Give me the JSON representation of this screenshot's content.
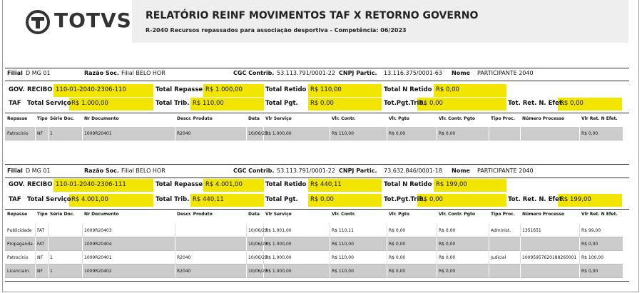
{
  "header": {
    "logo": "TOTVS",
    "title": "RELATÓRIO REINF MOVIMENTOS TAF X RETORNO GOVERNO",
    "subtitle": "R-2040 Recursos repassados para associação desportiva  - Competência: 06/2023"
  },
  "blocks": [
    {
      "info": [
        {
          "label": "Filial",
          "value": "D MG 01"
        },
        {
          "label": "Razão Soc.",
          "value": "Filial BELO HOR"
        },
        {
          "label": "CGC Contrib.",
          "value": "53.113.791/0001-22"
        },
        {
          "label": "CNPJ Partic.",
          "value": "13.116.375/0001-63"
        },
        {
          "label": "Nome",
          "value": "PARTICIPANTE 2040"
        }
      ],
      "gov": {
        "prefix": "GOV.",
        "fields": [
          {
            "label": "RECIBO",
            "value": "110-01-2040-2306-110"
          },
          {
            "label": "Total Repasse",
            "value": "R$ 1.000,00"
          },
          {
            "label": "Total Retido",
            "value": "R$ 110,00"
          },
          {
            "label": "Total N Retido",
            "value": "R$ 0,00"
          }
        ]
      },
      "taf": {
        "prefix": "TAF",
        "fields": [
          {
            "label": "Total Serviço",
            "value": "R$ 1.000,00"
          },
          {
            "label": "Total Trib.",
            "value": "R$ 110,00"
          },
          {
            "label": "Total Pgt.",
            "value": "R$ 0,00"
          },
          {
            "label": "Tot.Pgt.Trib.",
            "value": "R$ 0,00"
          },
          {
            "label": "Tot. Ret. N. Efet.",
            "value": "R$ 0,00"
          }
        ]
      },
      "table": {
        "headers": [
          "Repasse",
          "Tipo",
          "Série Doc.",
          "Nr Documento",
          "Descr. Produto",
          "Data",
          "Vlr Serviço",
          "Vlr. Contr.",
          "Vlr. Pgto",
          "Vlr. Contr. Pgto",
          "Tipo Proc.",
          "Número Processo",
          "Vlr Ret. N Efet."
        ],
        "rows": [
          [
            "Patrocínio",
            "NF",
            "1",
            "1009R20401",
            "R2040",
            "10/06/23",
            "R$ 1.000,00",
            "R$ 110,00",
            "R$ 0,00",
            "R$ 0,00",
            null,
            null,
            "R$ 0,00"
          ]
        ]
      }
    },
    {
      "info": [
        {
          "label": "Filial",
          "value": "D MG 01"
        },
        {
          "label": "Razão Soc.",
          "value": "Filial BELO HOR"
        },
        {
          "label": "CGC Contrib.",
          "value": "53.113.791/0001-22"
        },
        {
          "label": "CNPJ Partic.",
          "value": "73.632.846/0001-18"
        },
        {
          "label": "Nome",
          "value": "PARTICIPANTE 2040"
        }
      ],
      "gov": {
        "prefix": "GOV.",
        "fields": [
          {
            "label": "RECIBO",
            "value": "110-01-2040-2306-111"
          },
          {
            "label": "Total Repasse",
            "value": "R$ 4.001,00"
          },
          {
            "label": "Total Retido",
            "value": "R$ 440,11"
          },
          {
            "label": "Total N Retido",
            "value": "R$ 199,00"
          }
        ]
      },
      "taf": {
        "prefix": "TAF",
        "fields": [
          {
            "label": "Total Serviço",
            "value": "R$ 4.001,00"
          },
          {
            "label": "Total Trib.",
            "value": "R$ 440,11"
          },
          {
            "label": "Total Pgt.",
            "value": "R$ 0,00"
          },
          {
            "label": "Tot.Pgt.Trib.",
            "value": "R$ 0,00"
          },
          {
            "label": "Tot. Ret. N. Efet.",
            "value": "R$ 199,00"
          }
        ]
      },
      "table": {
        "headers": [
          "Repasse",
          "Tipo",
          "Série Doc.",
          "Nr Documento",
          "Descr. Produto",
          "Data",
          "Vlr Serviço",
          "Vlr. Contr.",
          "Vlr. Pgto",
          "Vlr. Contr. Pgto",
          "Tipo Proc.",
          "Número Processo",
          "Vlr Ret. N Efet."
        ],
        "rows": [
          [
            "Publicidade",
            "FAT",
            null,
            "1009R20403",
            null,
            "10/06/23",
            "R$ 1.001,00",
            "R$ 110,11",
            "R$ 0,00",
            "R$ 0,00",
            "Administ.",
            "1351651",
            "R$ 99,00"
          ],
          [
            "Propaganda",
            "FAT",
            null,
            "1009R20404",
            null,
            "10/06/23",
            "R$ 1.000,00",
            "R$ 110,00",
            "R$ 0,00",
            "R$ 0,00",
            null,
            null,
            "R$ 0,00"
          ],
          [
            "Patrocínio",
            "NF",
            "1",
            "1009R20401",
            "R2040",
            "10/06/23",
            "R$ 1.000,00",
            "R$ 110,00",
            "R$ 0,00",
            "R$ 0,00",
            "Judicial",
            "10095957620188260001",
            "R$ 100,00"
          ],
          [
            "Licenciam.",
            "NF",
            "1",
            "1009R20402",
            "R2040",
            "10/06/23",
            "R$ 1.000,00",
            "R$ 110,00",
            "R$ 0,00",
            "R$ 0,00",
            null,
            null,
            "R$ 0,00"
          ]
        ]
      }
    }
  ]
}
